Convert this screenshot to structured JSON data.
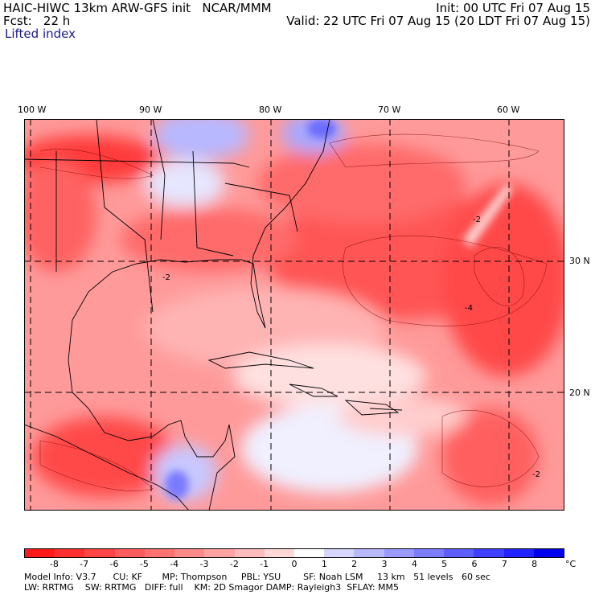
{
  "header": {
    "title": "HAIC-HIWC 13km ARW-GFS init   NCAR/MMM",
    "init": "Init: 00 UTC Fri 07 Aug 15",
    "fcst": "Fcst:   22 h",
    "valid": "Valid: 22 UTC Fri 07 Aug 15 (20 LDT Fri 07 Aug 15)",
    "variable": "Lifted index"
  },
  "longitude_labels": [
    "100 W",
    "90 W",
    "80 W",
    "70 W",
    "60 W"
  ],
  "latitude_labels": [
    "30 N",
    "20 N"
  ],
  "colorbar": {
    "ticks": [
      "-8",
      "-7",
      "-6",
      "-5",
      "-4",
      "-3",
      "-2",
      "-1",
      "0",
      "1",
      "2",
      "3",
      "4",
      "5",
      "6",
      "7",
      "8"
    ],
    "unit": "°C",
    "colors": [
      "#ff1a1a",
      "#ff3030",
      "#ff4545",
      "#ff5c5c",
      "#ff7272",
      "#ff8a8a",
      "#ffa3a3",
      "#ffbcbc",
      "#ffd8d8",
      "#ffffff",
      "#d6d6ff",
      "#b8b8ff",
      "#9a9aff",
      "#7c7cff",
      "#5e5eff",
      "#4040ff",
      "#2222ff",
      "#0000ee"
    ]
  },
  "model_info": {
    "line1": "Model Info: V3.7      CU: KF       MP: Thompson     PBL: YSU        SF: Noah LSM     13 km   51 levels   60 sec",
    "line2": "LW: RRTMG    SW: RRTMG   DIFF: full    KM: 2D Smagor DAMP: Rayleigh3  SFLAY: MM5"
  },
  "contour_labels": [
    "-2",
    "-4",
    "-2",
    "-2"
  ]
}
